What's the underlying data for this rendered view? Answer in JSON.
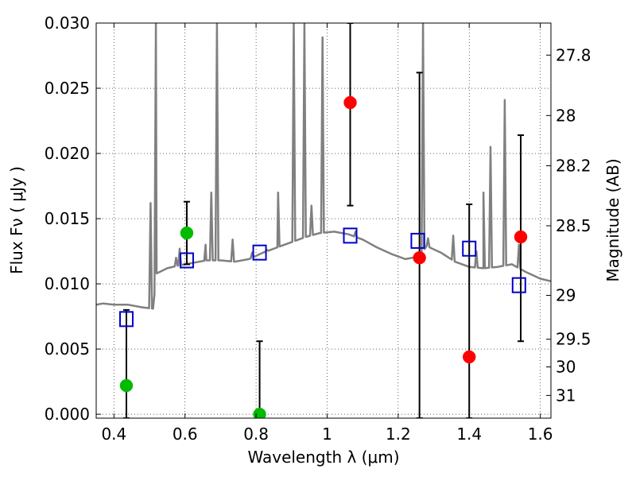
{
  "chart_data": {
    "type": "scatter",
    "xlabel": "Wavelength  λ (μm)",
    "ylabel": "Flux  Fν ( μJy )",
    "y2label": "Magnitude (AB)",
    "xlim": [
      0.35,
      1.63
    ],
    "ylim": [
      -0.0003,
      0.03
    ],
    "grid": true,
    "x_ticks": [
      {
        "v": 0.4,
        "label": "0.4"
      },
      {
        "v": 0.6,
        "label": "0.6"
      },
      {
        "v": 0.8,
        "label": "0.8"
      },
      {
        "v": 1.0,
        "label": "1"
      },
      {
        "v": 1.2,
        "label": "1.2"
      },
      {
        "v": 1.4,
        "label": "1.4"
      },
      {
        "v": 1.6,
        "label": "1.6"
      }
    ],
    "y_ticks": [
      {
        "v": 0.0,
        "label": "0.000"
      },
      {
        "v": 0.005,
        "label": "0.005"
      },
      {
        "v": 0.01,
        "label": "0.010"
      },
      {
        "v": 0.015,
        "label": "0.015"
      },
      {
        "v": 0.02,
        "label": "0.020"
      },
      {
        "v": 0.025,
        "label": "0.025"
      },
      {
        "v": 0.03,
        "label": "0.030"
      }
    ],
    "mag_ticks": [
      {
        "v": 27.8,
        "label": "27.8"
      },
      {
        "v": 28.0,
        "label": "28"
      },
      {
        "v": 28.2,
        "label": "28.2"
      },
      {
        "v": 28.5,
        "label": "28.5"
      },
      {
        "v": 29.0,
        "label": "29"
      },
      {
        "v": 29.5,
        "label": "29.5"
      },
      {
        "v": 30.0,
        "label": "30"
      },
      {
        "v": 31.0,
        "label": "31"
      }
    ],
    "model_spectrum": {
      "color": "#808080",
      "continuum": [
        [
          0.35,
          0.0084
        ],
        [
          0.37,
          0.0085
        ],
        [
          0.4,
          0.0084
        ],
        [
          0.44,
          0.0084
        ],
        [
          0.48,
          0.0082
        ],
        [
          0.51,
          0.0081
        ],
        [
          0.52,
          0.0108
        ],
        [
          0.55,
          0.0112
        ],
        [
          0.58,
          0.0114
        ],
        [
          0.62,
          0.0116
        ],
        [
          0.66,
          0.0118
        ],
        [
          0.7,
          0.0118
        ],
        [
          0.74,
          0.0117
        ],
        [
          0.78,
          0.0119
        ],
        [
          0.82,
          0.0124
        ],
        [
          0.86,
          0.0128
        ],
        [
          0.9,
          0.0132
        ],
        [
          0.94,
          0.0136
        ],
        [
          0.98,
          0.0139
        ],
        [
          1.02,
          0.014
        ],
        [
          1.06,
          0.0138
        ],
        [
          1.1,
          0.0134
        ],
        [
          1.14,
          0.0128
        ],
        [
          1.18,
          0.0123
        ],
        [
          1.22,
          0.0119
        ],
        [
          1.26,
          0.0121
        ],
        [
          1.28,
          0.0129
        ],
        [
          1.32,
          0.0124
        ],
        [
          1.36,
          0.0117
        ],
        [
          1.4,
          0.0113
        ],
        [
          1.44,
          0.0112
        ],
        [
          1.48,
          0.0113
        ],
        [
          1.52,
          0.0115
        ],
        [
          1.56,
          0.0109
        ],
        [
          1.6,
          0.0104
        ],
        [
          1.63,
          0.0102
        ]
      ],
      "lines": [
        [
          0.503,
          0.0162
        ],
        [
          0.518,
          0.03
        ],
        [
          0.575,
          0.012
        ],
        [
          0.585,
          0.0127
        ],
        [
          0.658,
          0.013
        ],
        [
          0.674,
          0.017
        ],
        [
          0.69,
          0.03
        ],
        [
          0.734,
          0.0134
        ],
        [
          0.789,
          0.0124
        ],
        [
          0.83,
          0.0126
        ],
        [
          0.862,
          0.017
        ],
        [
          0.906,
          0.03
        ],
        [
          0.936,
          0.03
        ],
        [
          0.956,
          0.016
        ],
        [
          0.987,
          0.0289
        ],
        [
          1.08,
          0.014
        ],
        [
          1.27,
          0.03
        ],
        [
          1.284,
          0.0135
        ],
        [
          1.355,
          0.0137
        ],
        [
          1.42,
          0.0125
        ],
        [
          1.44,
          0.017
        ],
        [
          1.46,
          0.0205
        ],
        [
          1.5,
          0.0241
        ],
        [
          1.54,
          0.013
        ]
      ]
    },
    "series": [
      {
        "name": "",
        "marker": "square-open",
        "color": "#0000cc",
        "points": [
          {
            "x": 0.435,
            "y": 0.0073
          },
          {
            "x": 0.605,
            "y": 0.0118
          },
          {
            "x": 0.81,
            "y": 0.0124
          },
          {
            "x": 1.065,
            "y": 0.0137
          },
          {
            "x": 1.255,
            "y": 0.0133
          },
          {
            "x": 1.4,
            "y": 0.0127
          },
          {
            "x": 1.54,
            "y": 0.0099
          }
        ]
      },
      {
        "name": "",
        "marker": "circle",
        "color": "#00bb00",
        "points": [
          {
            "x": 0.435,
            "y": 0.0022,
            "ylo": -0.0003,
            "yhi": 0.008
          },
          {
            "x": 0.605,
            "y": 0.0139,
            "ylo": 0.0115,
            "yhi": 0.0163
          },
          {
            "x": 0.81,
            "y": 0.0,
            "ylo": -0.0003,
            "yhi": 0.0056
          }
        ]
      },
      {
        "name": "",
        "marker": "circle",
        "color": "#ff0000",
        "points": [
          {
            "x": 1.065,
            "y": 0.0239,
            "ylo": 0.016,
            "yhi": 0.03
          },
          {
            "x": 1.26,
            "y": 0.012,
            "ylo": -0.0003,
            "yhi": 0.0262
          },
          {
            "x": 1.4,
            "y": 0.0044,
            "ylo": -0.0003,
            "yhi": 0.0161
          },
          {
            "x": 1.545,
            "y": 0.0136,
            "ylo": 0.0056,
            "yhi": 0.0214
          }
        ]
      }
    ]
  }
}
